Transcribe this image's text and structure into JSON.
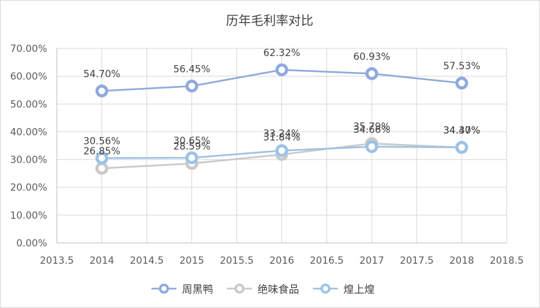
{
  "chart_data": {
    "type": "scatter",
    "title": "历年毛利率对比",
    "xlabel": "",
    "ylabel": "",
    "xlim": [
      2013.5,
      2018.5
    ],
    "ylim": [
      0,
      70
    ],
    "x_ticks": [
      "2013.5",
      "2014",
      "2014.5",
      "2015",
      "2015.5",
      "2016",
      "2016.5",
      "2017",
      "2017.5",
      "2018",
      "2018.5"
    ],
    "y_ticks": [
      "0.00%",
      "10.00%",
      "20.00%",
      "30.00%",
      "40.00%",
      "50.00%",
      "60.00%",
      "70.00%"
    ],
    "grid": true,
    "legend_position": "bottom",
    "series": [
      {
        "name": "周黑鸭",
        "color": "#8faadc",
        "x": [
          2014,
          2015,
          2016,
          2017,
          2018
        ],
        "y": [
          54.7,
          56.45,
          62.32,
          60.93,
          57.53
        ],
        "labels": [
          "54.70%",
          "56.45%",
          "62.32%",
          "60.93%",
          "57.53%"
        ]
      },
      {
        "name": "绝味食品",
        "color": "#c9c9c9",
        "x": [
          2014,
          2015,
          2016,
          2017,
          2018
        ],
        "y": [
          26.85,
          28.59,
          31.84,
          35.79,
          34.37
        ],
        "labels": [
          "26.85%",
          "28.59%",
          "31.84%",
          "35.79%",
          "34.37%"
        ]
      },
      {
        "name": "煌上煌",
        "color": "#9dc3e6",
        "x": [
          2014,
          2015,
          2016,
          2017,
          2018
        ],
        "y": [
          30.56,
          30.65,
          33.24,
          34.66,
          34.4
        ],
        "labels": [
          "30.56%",
          "30.65%",
          "33.24%",
          "34.66%",
          "34.40%"
        ]
      }
    ]
  }
}
